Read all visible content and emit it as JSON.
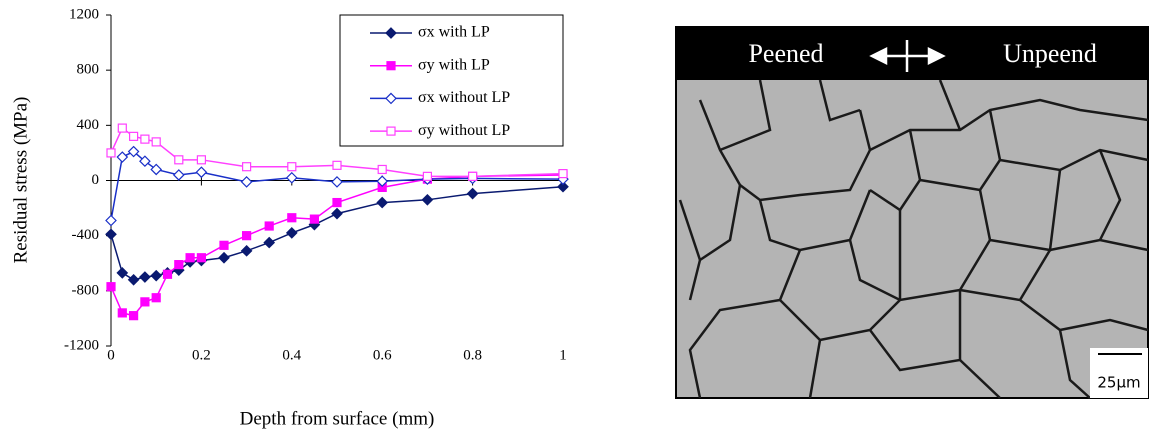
{
  "chart_data": {
    "type": "line",
    "xlabel": "Depth from surface (mm)",
    "ylabel": "Residual stress (MPa)",
    "xlim": [
      0,
      1
    ],
    "xticks": [
      0,
      0.2,
      0.4,
      0.6,
      0.8,
      1
    ],
    "ylim": [
      -1200,
      1200
    ],
    "yticks": [
      -1200,
      -800,
      -400,
      0,
      400,
      800,
      1200
    ],
    "legend": "top-right",
    "series": [
      {
        "name": "σx with LP",
        "color": "#0a1a70",
        "marker": "diamond",
        "filled": true,
        "x": [
          0,
          0.025,
          0.05,
          0.075,
          0.1,
          0.125,
          0.15,
          0.175,
          0.2,
          0.25,
          0.3,
          0.35,
          0.4,
          0.45,
          0.5,
          0.6,
          0.7,
          0.8,
          1
        ],
        "values": [
          -390,
          -670,
          -720,
          -700,
          -690,
          -670,
          -650,
          -590,
          -580,
          -560,
          -510,
          -450,
          -380,
          -320,
          -240,
          -160,
          -140,
          -95,
          -45
        ]
      },
      {
        "name": "σy with LP",
        "color": "#ff00ff",
        "marker": "square",
        "filled": true,
        "x": [
          0,
          0.025,
          0.05,
          0.075,
          0.1,
          0.125,
          0.15,
          0.175,
          0.2,
          0.25,
          0.3,
          0.35,
          0.4,
          0.45,
          0.5,
          0.6,
          0.7,
          0.8,
          1
        ],
        "values": [
          -770,
          -960,
          -980,
          -880,
          -850,
          -680,
          -610,
          -560,
          -560,
          -470,
          -400,
          -330,
          -270,
          -280,
          -160,
          -50,
          10,
          30,
          40
        ]
      },
      {
        "name": "σx without LP",
        "color": "#1a30c8",
        "marker": "diamond",
        "filled": false,
        "x": [
          0,
          0.025,
          0.05,
          0.075,
          0.1,
          0.15,
          0.2,
          0.3,
          0.4,
          0.5,
          0.6,
          0.7,
          0.8,
          1
        ],
        "values": [
          -290,
          170,
          210,
          140,
          80,
          40,
          60,
          -10,
          20,
          -10,
          -5,
          10,
          15,
          10
        ]
      },
      {
        "name": "σy without LP",
        "color": "#ff40ff",
        "marker": "square",
        "filled": false,
        "x": [
          0,
          0.025,
          0.05,
          0.075,
          0.1,
          0.15,
          0.2,
          0.3,
          0.4,
          0.5,
          0.6,
          0.7,
          0.8,
          1
        ],
        "values": [
          200,
          380,
          320,
          300,
          280,
          150,
          150,
          100,
          100,
          110,
          80,
          30,
          30,
          50
        ]
      }
    ]
  },
  "micrograph": {
    "left_label": "Peened",
    "right_label": "Unpeend",
    "scale_label": "25μm"
  }
}
